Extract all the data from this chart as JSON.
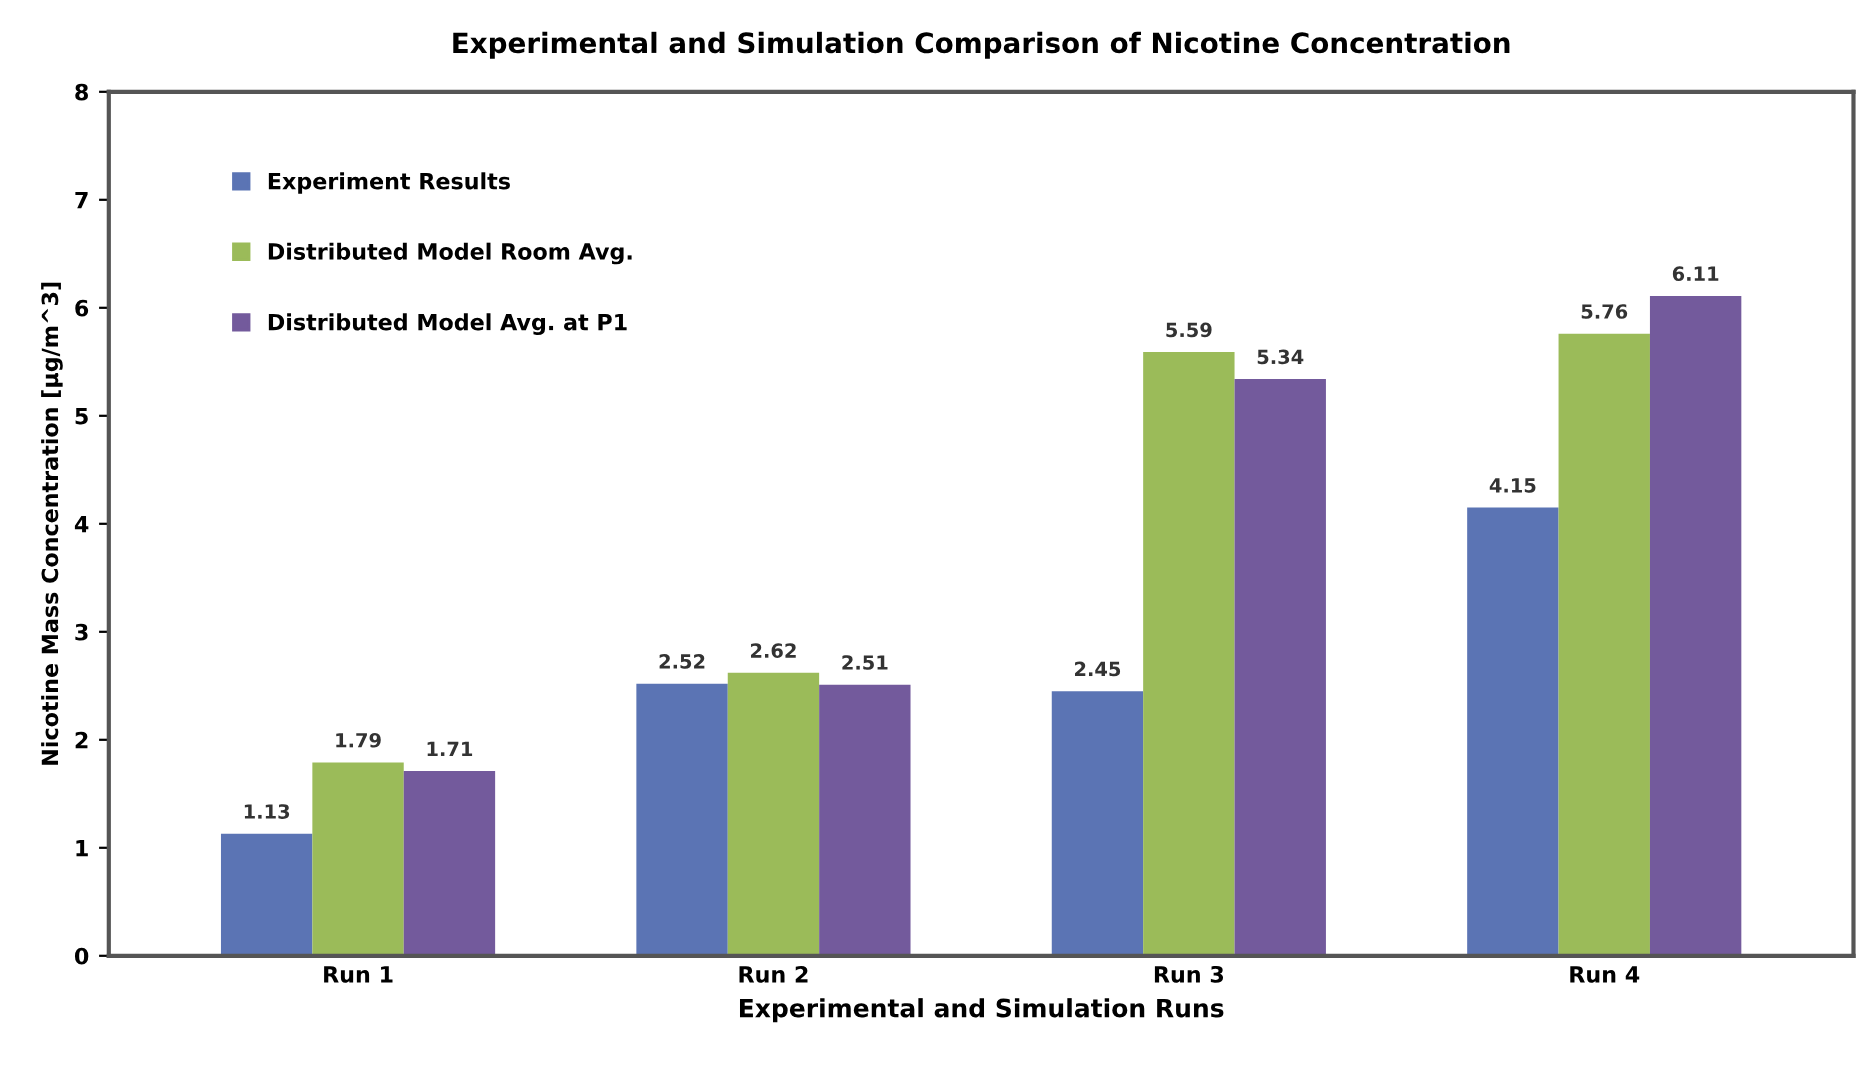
{
  "chart_data": {
    "type": "bar",
    "title": "Experimental and Simulation Comparison of Nicotine Concentration",
    "xlabel": "Experimental and Simulation Runs",
    "ylabel": "Nicotine Mass Concentration [µg/m^3]",
    "categories": [
      "Run 1",
      "Run 2",
      "Run 3",
      "Run 4"
    ],
    "series": [
      {
        "name": "Experiment Results",
        "color": "#5b74b4",
        "values": [
          1.13,
          2.52,
          2.45,
          4.15
        ]
      },
      {
        "name": "Distributed Model Room Avg.",
        "color": "#9bbb59",
        "values": [
          1.79,
          2.62,
          5.59,
          5.76
        ]
      },
      {
        "name": "Distributed Model Avg. at P1",
        "color": "#735a9c",
        "values": [
          1.71,
          2.51,
          5.34,
          6.11
        ]
      }
    ],
    "ylim": [
      0,
      8
    ],
    "yticks": [
      0,
      1,
      2,
      3,
      4,
      5,
      6,
      7,
      8
    ],
    "grid": false,
    "legend": "top left",
    "data_labels": true
  }
}
